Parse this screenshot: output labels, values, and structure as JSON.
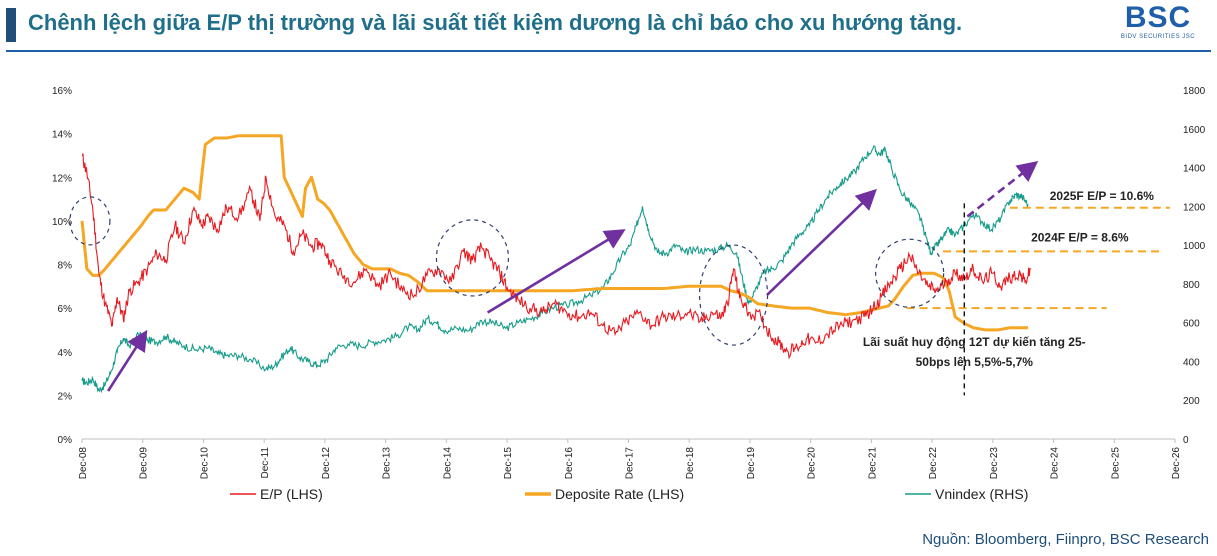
{
  "header": {
    "title": "Chênh lệch giữa E/P thị trường và lãi suất tiết kiệm dương là chỉ báo cho xu hướng tăng.",
    "logo_text": "BSC",
    "logo_subtext": "BIDV SECURITIES JSC"
  },
  "source": "Nguồn: Bloomberg, Fiinpro, BSC Research",
  "colors": {
    "ep": "#e8191f",
    "deposit": "#f5a623",
    "vnindex": "#169c8a",
    "arrow": "#7030a0",
    "circle": "#2f3f6f",
    "title": "#1f6f8b"
  },
  "chart_data": {
    "type": "line",
    "x_ticks": [
      "Dec-08",
      "Dec-09",
      "Dec-10",
      "Dec-11",
      "Dec-12",
      "Dec-13",
      "Dec-14",
      "Dec-15",
      "Dec-16",
      "Dec-17",
      "Dec-18",
      "Dec-19",
      "Dec-20",
      "Dec-21",
      "Dec-22",
      "Dec-23",
      "Dec-24",
      "Dec-25",
      "Dec-26"
    ],
    "y_left": {
      "min": 0,
      "max": 16,
      "ticks": [
        "0%",
        "2%",
        "4%",
        "6%",
        "8%",
        "10%",
        "12%",
        "14%",
        "16%"
      ]
    },
    "y_right": {
      "min": 0,
      "max": 1800,
      "ticks": [
        "0",
        "200",
        "400",
        "600",
        "800",
        "1000",
        "1200",
        "1400",
        "1600",
        "1800"
      ]
    },
    "series": [
      {
        "name": "E/P (LHS)",
        "axis": "left",
        "points": [
          [
            2008.92,
            13
          ],
          [
            2009.0,
            12.2
          ],
          [
            2009.1,
            10.5
          ],
          [
            2009.2,
            7.5
          ],
          [
            2009.3,
            6.2
          ],
          [
            2009.42,
            5.2
          ],
          [
            2009.5,
            6.5
          ],
          [
            2009.6,
            5.5
          ],
          [
            2009.7,
            6.8
          ],
          [
            2009.85,
            7.2
          ],
          [
            2010.0,
            7.8
          ],
          [
            2010.15,
            8.5
          ],
          [
            2010.3,
            8.2
          ],
          [
            2010.45,
            9.8
          ],
          [
            2010.6,
            9.0
          ],
          [
            2010.75,
            10.5
          ],
          [
            2010.9,
            9.8
          ],
          [
            2011.0,
            10.2
          ],
          [
            2011.15,
            9.6
          ],
          [
            2011.3,
            10.6
          ],
          [
            2011.5,
            10.2
          ],
          [
            2011.7,
            11.4
          ],
          [
            2011.85,
            10.0
          ],
          [
            2011.95,
            12.0
          ],
          [
            2012.1,
            10.2
          ],
          [
            2012.25,
            9.8
          ],
          [
            2012.4,
            8.6
          ],
          [
            2012.55,
            9.4
          ],
          [
            2012.7,
            8.8
          ],
          [
            2012.85,
            9.0
          ],
          [
            2013.0,
            8.2
          ],
          [
            2013.2,
            7.5
          ],
          [
            2013.4,
            7.2
          ],
          [
            2013.6,
            7.8
          ],
          [
            2013.8,
            7.0
          ],
          [
            2014.0,
            7.6
          ],
          [
            2014.2,
            6.8
          ],
          [
            2014.4,
            6.6
          ],
          [
            2014.6,
            7.5
          ],
          [
            2014.8,
            7.8
          ],
          [
            2015.0,
            7.2
          ],
          [
            2015.2,
            8.6
          ],
          [
            2015.35,
            8.2
          ],
          [
            2015.5,
            8.8
          ],
          [
            2015.65,
            8.2
          ],
          [
            2015.8,
            7.6
          ],
          [
            2015.95,
            6.8
          ],
          [
            2016.1,
            6.4
          ],
          [
            2016.3,
            6.0
          ],
          [
            2016.5,
            5.8
          ],
          [
            2016.7,
            6.2
          ],
          [
            2016.9,
            5.8
          ],
          [
            2017.1,
            5.6
          ],
          [
            2017.3,
            5.8
          ],
          [
            2017.5,
            5.2
          ],
          [
            2017.7,
            4.8
          ],
          [
            2017.9,
            5.4
          ],
          [
            2018.1,
            5.8
          ],
          [
            2018.3,
            5.2
          ],
          [
            2018.5,
            5.6
          ],
          [
            2018.7,
            5.6
          ],
          [
            2018.9,
            5.8
          ],
          [
            2019.1,
            5.4
          ],
          [
            2019.3,
            5.8
          ],
          [
            2019.45,
            5.6
          ],
          [
            2019.55,
            6.2
          ],
          [
            2019.65,
            7.8
          ],
          [
            2019.75,
            6.5
          ],
          [
            2019.9,
            5.8
          ],
          [
            2020.1,
            5.6
          ],
          [
            2020.25,
            4.8
          ],
          [
            2020.4,
            4.4
          ],
          [
            2020.55,
            4.0
          ],
          [
            2020.7,
            4.2
          ],
          [
            2020.85,
            4.6
          ],
          [
            2021.0,
            4.4
          ],
          [
            2021.2,
            4.8
          ],
          [
            2021.4,
            5.2
          ],
          [
            2021.6,
            5.4
          ],
          [
            2021.8,
            5.6
          ],
          [
            2021.95,
            6.0
          ],
          [
            2022.1,
            6.6
          ],
          [
            2022.25,
            7.2
          ],
          [
            2022.4,
            7.8
          ],
          [
            2022.55,
            8.4
          ],
          [
            2022.7,
            7.6
          ],
          [
            2022.85,
            7.0
          ],
          [
            2023.0,
            6.8
          ],
          [
            2023.15,
            7.2
          ],
          [
            2023.3,
            7.6
          ],
          [
            2023.45,
            7.4
          ],
          [
            2023.6,
            7.8
          ],
          [
            2023.75,
            7.2
          ],
          [
            2023.9,
            7.6
          ],
          [
            2024.05,
            7.0
          ],
          [
            2024.2,
            7.4
          ],
          [
            2024.35,
            7.6
          ],
          [
            2024.45,
            7.2
          ],
          [
            2024.55,
            7.8
          ]
        ]
      },
      {
        "name": "Deposite Rate (LHS)",
        "axis": "left",
        "points": [
          [
            2008.92,
            10.0
          ],
          [
            2009.0,
            7.8
          ],
          [
            2009.1,
            7.5
          ],
          [
            2009.2,
            7.5
          ],
          [
            2009.3,
            7.8
          ],
          [
            2009.45,
            8.3
          ],
          [
            2009.6,
            8.8
          ],
          [
            2009.75,
            9.3
          ],
          [
            2009.9,
            9.8
          ],
          [
            2010.0,
            10.2
          ],
          [
            2010.1,
            10.5
          ],
          [
            2010.3,
            10.5
          ],
          [
            2010.45,
            11.0
          ],
          [
            2010.6,
            11.5
          ],
          [
            2010.75,
            11.3
          ],
          [
            2010.85,
            11.0
          ],
          [
            2010.95,
            13.5
          ],
          [
            2011.1,
            13.8
          ],
          [
            2011.3,
            13.8
          ],
          [
            2011.5,
            13.9
          ],
          [
            2011.7,
            13.9
          ],
          [
            2011.9,
            13.9
          ],
          [
            2012.2,
            13.9
          ],
          [
            2012.25,
            12.0
          ],
          [
            2012.35,
            11.4
          ],
          [
            2012.45,
            10.8
          ],
          [
            2012.55,
            10.2
          ],
          [
            2012.6,
            11.5
          ],
          [
            2012.7,
            12.0
          ],
          [
            2012.8,
            11.0
          ],
          [
            2012.9,
            10.8
          ],
          [
            2013.0,
            10.5
          ],
          [
            2013.1,
            10.0
          ],
          [
            2013.2,
            9.5
          ],
          [
            2013.3,
            9.0
          ],
          [
            2013.4,
            8.5
          ],
          [
            2013.55,
            8.0
          ],
          [
            2013.7,
            7.8
          ],
          [
            2013.85,
            7.8
          ],
          [
            2014.0,
            7.8
          ],
          [
            2014.15,
            7.6
          ],
          [
            2014.3,
            7.5
          ],
          [
            2014.45,
            7.2
          ],
          [
            2014.6,
            6.8
          ],
          [
            2014.8,
            6.8
          ],
          [
            2015.2,
            6.8
          ],
          [
            2015.6,
            6.8
          ],
          [
            2016.0,
            6.8
          ],
          [
            2016.5,
            6.8
          ],
          [
            2017.0,
            6.8
          ],
          [
            2017.5,
            6.9
          ],
          [
            2018.0,
            6.9
          ],
          [
            2018.5,
            6.9
          ],
          [
            2018.9,
            7.0
          ],
          [
            2019.2,
            7.0
          ],
          [
            2019.45,
            7.0
          ],
          [
            2019.6,
            6.8
          ],
          [
            2019.75,
            6.7
          ],
          [
            2019.9,
            6.5
          ],
          [
            2020.05,
            6.2
          ],
          [
            2020.3,
            6.1
          ],
          [
            2020.6,
            6.0
          ],
          [
            2020.9,
            6.0
          ],
          [
            2021.2,
            5.8
          ],
          [
            2021.5,
            5.7
          ],
          [
            2021.75,
            5.8
          ],
          [
            2021.9,
            5.9
          ],
          [
            2022.05,
            6.0
          ],
          [
            2022.2,
            6.1
          ],
          [
            2022.3,
            6.4
          ],
          [
            2022.45,
            7.0
          ],
          [
            2022.6,
            7.5
          ],
          [
            2022.75,
            7.6
          ],
          [
            2022.95,
            7.6
          ],
          [
            2023.1,
            7.4
          ],
          [
            2023.2,
            6.8
          ],
          [
            2023.3,
            5.6
          ],
          [
            2023.45,
            5.3
          ],
          [
            2023.6,
            5.1
          ],
          [
            2023.8,
            5.0
          ],
          [
            2024.0,
            5.0
          ],
          [
            2024.2,
            5.1
          ],
          [
            2024.35,
            5.1
          ],
          [
            2024.5,
            5.1
          ]
        ]
      },
      {
        "name": "Vnindex (RHS)",
        "axis": "right",
        "points": [
          [
            2008.92,
            300
          ],
          [
            2009.0,
            290
          ],
          [
            2009.1,
            310
          ],
          [
            2009.2,
            250
          ],
          [
            2009.3,
            280
          ],
          [
            2009.4,
            350
          ],
          [
            2009.5,
            450
          ],
          [
            2009.6,
            520
          ],
          [
            2009.7,
            480
          ],
          [
            2009.85,
            540
          ],
          [
            2010.0,
            510
          ],
          [
            2010.15,
            500
          ],
          [
            2010.3,
            530
          ],
          [
            2010.45,
            500
          ],
          [
            2010.6,
            480
          ],
          [
            2010.8,
            460
          ],
          [
            2011.0,
            470
          ],
          [
            2011.15,
            440
          ],
          [
            2011.3,
            430
          ],
          [
            2011.5,
            430
          ],
          [
            2011.7,
            410
          ],
          [
            2011.95,
            360
          ],
          [
            2012.1,
            380
          ],
          [
            2012.2,
            420
          ],
          [
            2012.35,
            470
          ],
          [
            2012.5,
            420
          ],
          [
            2012.65,
            400
          ],
          [
            2012.8,
            380
          ],
          [
            2012.95,
            410
          ],
          [
            2013.1,
            470
          ],
          [
            2013.3,
            490
          ],
          [
            2013.5,
            480
          ],
          [
            2013.7,
            500
          ],
          [
            2013.9,
            510
          ],
          [
            2014.1,
            530
          ],
          [
            2014.3,
            580
          ],
          [
            2014.45,
            560
          ],
          [
            2014.6,
            620
          ],
          [
            2014.75,
            600
          ],
          [
            2014.9,
            560
          ],
          [
            2015.1,
            570
          ],
          [
            2015.3,
            560
          ],
          [
            2015.5,
            610
          ],
          [
            2015.7,
            600
          ],
          [
            2015.9,
            570
          ],
          [
            2016.1,
            600
          ],
          [
            2016.3,
            620
          ],
          [
            2016.5,
            650
          ],
          [
            2016.7,
            680
          ],
          [
            2016.9,
            690
          ],
          [
            2017.1,
            710
          ],
          [
            2017.3,
            740
          ],
          [
            2017.5,
            780
          ],
          [
            2017.65,
            850
          ],
          [
            2017.8,
            940
          ],
          [
            2017.95,
            1000
          ],
          [
            2018.05,
            1100
          ],
          [
            2018.15,
            1200
          ],
          [
            2018.25,
            1080
          ],
          [
            2018.4,
            960
          ],
          [
            2018.55,
            960
          ],
          [
            2018.7,
            1000
          ],
          [
            2018.85,
            960
          ],
          [
            2019.0,
            980
          ],
          [
            2019.2,
            970
          ],
          [
            2019.4,
            980
          ],
          [
            2019.55,
            1000
          ],
          [
            2019.7,
            960
          ],
          [
            2019.8,
            820
          ],
          [
            2019.9,
            700
          ],
          [
            2020.0,
            760
          ],
          [
            2020.15,
            860
          ],
          [
            2020.3,
            880
          ],
          [
            2020.45,
            920
          ],
          [
            2020.6,
            1000
          ],
          [
            2020.75,
            1060
          ],
          [
            2020.9,
            1100
          ],
          [
            2021.05,
            1180
          ],
          [
            2021.2,
            1250
          ],
          [
            2021.35,
            1300
          ],
          [
            2021.5,
            1340
          ],
          [
            2021.65,
            1380
          ],
          [
            2021.8,
            1450
          ],
          [
            2021.95,
            1500
          ],
          [
            2022.05,
            1470
          ],
          [
            2022.15,
            1490
          ],
          [
            2022.25,
            1400
          ],
          [
            2022.4,
            1280
          ],
          [
            2022.55,
            1220
          ],
          [
            2022.7,
            1160
          ],
          [
            2022.8,
            1060
          ],
          [
            2022.9,
            960
          ],
          [
            2023.0,
            1000
          ],
          [
            2023.1,
            1040
          ],
          [
            2023.2,
            1080
          ],
          [
            2023.3,
            1050
          ],
          [
            2023.45,
            1100
          ],
          [
            2023.6,
            1160
          ],
          [
            2023.75,
            1120
          ],
          [
            2023.9,
            1080
          ],
          [
            2024.05,
            1140
          ],
          [
            2024.2,
            1230
          ],
          [
            2024.3,
            1260
          ],
          [
            2024.4,
            1250
          ],
          [
            2024.5,
            1210
          ]
        ]
      }
    ],
    "annotations": {
      "label_2025": "2025F E/P = 10.6%",
      "label_2024": "2024F E/P = 8.6%",
      "note_line1": "Lãi suất huy động 12T dự kiến tăng 25-",
      "note_line2": "50bps lên 5,5%-5,7%",
      "ref_2025": 10.6,
      "ref_2024": 8.6,
      "ref_rate": 6.0
    },
    "legend": [
      "E/P (LHS)",
      "Deposite Rate (LHS)",
      "Vnindex (RHS)"
    ],
    "legend_position": "bottom",
    "grid": false
  }
}
